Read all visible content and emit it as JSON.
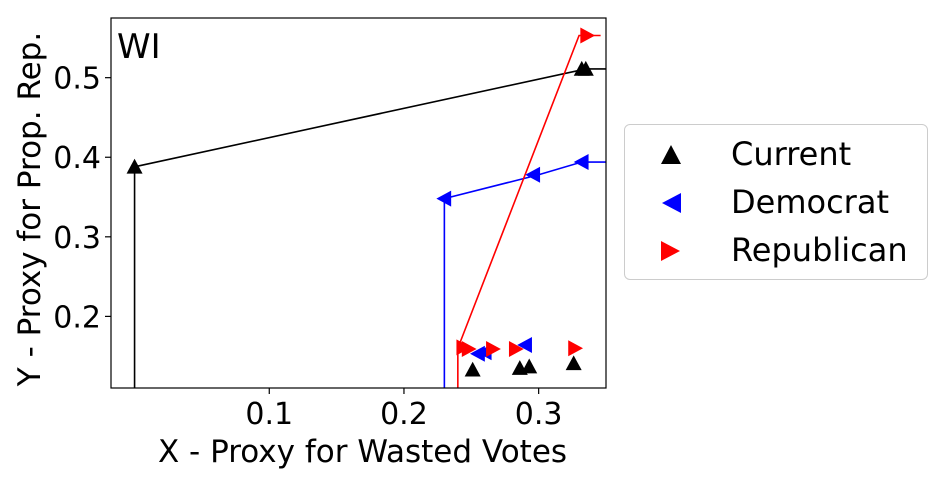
{
  "chart_data": {
    "type": "scatter",
    "panel_label": "WI",
    "xlabel": "X - Proxy for Wasted Votes",
    "ylabel": "Y - Proxy for Prop. Rep.",
    "xlim": [
      -0.0175,
      0.35
    ],
    "ylim": [
      0.11,
      0.575
    ],
    "xticks": [
      0.1,
      0.2,
      0.3
    ],
    "yticks": [
      0.2,
      0.3,
      0.4,
      0.5
    ],
    "grid": false,
    "legend_position": "right",
    "series": [
      {
        "name": "Current",
        "color": "#000000",
        "marker": "triangle-up",
        "points": [
          [
            0.0,
            0.388
          ],
          [
            0.251,
            0.133
          ],
          [
            0.286,
            0.135
          ],
          [
            0.293,
            0.137
          ],
          [
            0.326,
            0.141
          ],
          [
            0.332,
            0.511
          ],
          [
            0.335,
            0.511
          ]
        ],
        "path": [
          [
            0.0,
            0.11
          ],
          [
            0.0,
            0.388
          ],
          [
            0.335,
            0.511
          ],
          [
            0.35,
            0.511
          ]
        ]
      },
      {
        "name": "Democrat",
        "color": "#0000ff",
        "marker": "triangle-left",
        "points": [
          [
            0.23,
            0.348
          ],
          [
            0.255,
            0.153
          ],
          [
            0.26,
            0.155
          ],
          [
            0.29,
            0.164
          ],
          [
            0.296,
            0.378
          ],
          [
            0.332,
            0.394
          ]
        ],
        "path": [
          [
            0.23,
            0.11
          ],
          [
            0.23,
            0.348
          ],
          [
            0.3,
            0.378
          ],
          [
            0.332,
            0.394
          ],
          [
            0.35,
            0.394
          ]
        ]
      },
      {
        "name": "Republican",
        "color": "#ff0000",
        "marker": "triangle-right",
        "points": [
          [
            0.244,
            0.161
          ],
          [
            0.248,
            0.159
          ],
          [
            0.266,
            0.159
          ],
          [
            0.283,
            0.159
          ],
          [
            0.327,
            0.16
          ],
          [
            0.336,
            0.553
          ]
        ],
        "path": [
          [
            0.24,
            0.11
          ],
          [
            0.24,
            0.16
          ],
          [
            0.33,
            0.553
          ],
          [
            0.346,
            0.553
          ]
        ]
      }
    ]
  }
}
